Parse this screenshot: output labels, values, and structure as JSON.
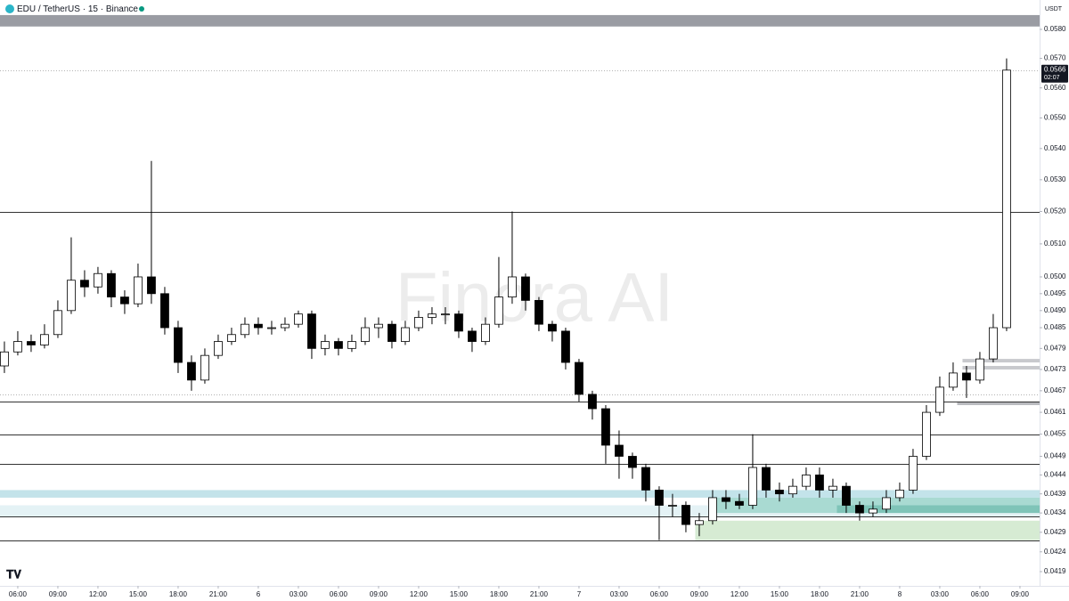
{
  "chart_data": {
    "type": "candlestick",
    "title": "EDU / TetherUS · 15 · Binance",
    "watermark": "Finora AI",
    "y_unit": "USDT",
    "log_y": true,
    "up_color": "#ffffff",
    "down_color": "#000000",
    "outline_color": "#000000",
    "ylim": [
      0.0419,
      0.058
    ],
    "yticks": [
      {
        "value": 0.058,
        "label": "0.0580"
      },
      {
        "value": 0.057,
        "label": "0.0570"
      },
      {
        "value": 0.056,
        "label": "0.0560"
      },
      {
        "value": 0.055,
        "label": "0.0550"
      },
      {
        "value": 0.054,
        "label": "0.0540"
      },
      {
        "value": 0.053,
        "label": "0.0530"
      },
      {
        "value": 0.052,
        "label": "0.0520"
      },
      {
        "value": 0.051,
        "label": "0.0510"
      },
      {
        "value": 0.05,
        "label": "0.0500"
      },
      0.0495,
      {
        "value": 0.049,
        "label": "0.0490"
      },
      0.0485,
      0.0479,
      0.0473,
      0.0467,
      0.0461,
      0.0455,
      0.0449,
      0.0444,
      0.0439,
      0.0434,
      0.0429,
      0.0424,
      0.0419
    ],
    "xlim": [
      -1.33,
      76.47
    ],
    "xticks": [
      {
        "value": 0,
        "label": "06:00"
      },
      {
        "value": 3,
        "label": "09:00"
      },
      {
        "value": 6,
        "label": "12:00"
      },
      {
        "value": 9,
        "label": "15:00"
      },
      {
        "value": 12,
        "label": "18:00"
      },
      {
        "value": 15,
        "label": "21:00"
      },
      {
        "value": 18,
        "label": "6"
      },
      {
        "value": 21,
        "label": "03:00"
      },
      {
        "value": 24,
        "label": "06:00"
      },
      {
        "value": 27,
        "label": "09:00"
      },
      {
        "value": 30,
        "label": "12:00"
      },
      {
        "value": 33,
        "label": "15:00"
      },
      {
        "value": 36,
        "label": "18:00"
      },
      {
        "value": 39,
        "label": "21:00"
      },
      {
        "value": 42,
        "label": "7"
      },
      {
        "value": 45,
        "label": "03:00"
      },
      {
        "value": 48,
        "label": "06:00"
      },
      {
        "value": 51,
        "label": "09:00"
      },
      {
        "value": 54,
        "label": "12:00"
      },
      {
        "value": 57,
        "label": "15:00"
      },
      {
        "value": 60,
        "label": "18:00"
      },
      {
        "value": 63,
        "label": "21:00"
      },
      {
        "value": 66,
        "label": "8"
      },
      {
        "value": 69,
        "label": "03:00"
      },
      {
        "value": 72,
        "label": "06:00"
      },
      {
        "value": 75,
        "label": "09:00"
      }
    ],
    "x": [
      -1,
      0,
      1,
      2,
      3,
      4,
      5,
      6,
      7,
      8,
      9,
      10,
      11,
      12,
      13,
      14,
      15,
      16,
      17,
      18,
      19,
      20,
      21,
      22,
      23,
      24,
      25,
      26,
      27,
      28,
      29,
      30,
      31,
      32,
      33,
      34,
      35,
      36,
      37,
      38,
      39,
      40,
      41,
      42,
      43,
      44,
      45,
      46,
      47,
      48,
      49,
      50,
      51,
      52,
      53,
      54,
      55,
      56,
      57,
      58,
      59,
      60,
      61,
      62,
      63,
      64,
      65,
      66,
      67,
      68,
      69,
      70,
      71,
      72,
      73,
      74
    ],
    "open": [
      0.0474,
      0.0478,
      0.0481,
      0.048,
      0.0483,
      0.049,
      0.0499,
      0.0497,
      0.0501,
      0.0494,
      0.0492,
      0.05,
      0.0495,
      0.0485,
      0.0475,
      0.047,
      0.0477,
      0.0481,
      0.0483,
      0.0486,
      0.0485,
      0.0485,
      0.0486,
      0.0489,
      0.0479,
      0.0481,
      0.0479,
      0.0481,
      0.0485,
      0.0486,
      0.0481,
      0.0485,
      0.0488,
      0.0489,
      0.0489,
      0.0484,
      0.0481,
      0.0486,
      0.0494,
      0.05,
      0.0493,
      0.0486,
      0.0484,
      0.0475,
      0.0466,
      0.0462,
      0.0452,
      0.0449,
      0.0446,
      0.044,
      0.0436,
      0.0436,
      0.0431,
      0.0432,
      0.0438,
      0.0437,
      0.0436,
      0.0446,
      0.044,
      0.0439,
      0.0441,
      0.0444,
      0.044,
      0.0441,
      0.0436,
      0.0434,
      0.0435,
      0.0438,
      0.044,
      0.0449,
      0.0461,
      0.0468,
      0.0472,
      0.047,
      0.0476,
      0.0485
    ],
    "high": [
      0.0481,
      0.0484,
      0.0483,
      0.0486,
      0.0493,
      0.0512,
      0.0502,
      0.0503,
      0.0502,
      0.0496,
      0.0504,
      0.0536,
      0.0497,
      0.0487,
      0.0477,
      0.0479,
      0.0483,
      0.0485,
      0.0488,
      0.0488,
      0.0487,
      0.0488,
      0.049,
      0.049,
      0.0483,
      0.0482,
      0.0483,
      0.0488,
      0.0488,
      0.0487,
      0.0487,
      0.049,
      0.0491,
      0.0491,
      0.049,
      0.0485,
      0.0488,
      0.0506,
      0.052,
      0.0501,
      0.0494,
      0.0487,
      0.0485,
      0.0476,
      0.0467,
      0.0463,
      0.0456,
      0.045,
      0.0447,
      0.0441,
      0.0439,
      0.0437,
      0.0434,
      0.044,
      0.044,
      0.0439,
      0.0455,
      0.0447,
      0.0442,
      0.0443,
      0.0446,
      0.0446,
      0.0443,
      0.0442,
      0.0437,
      0.0437,
      0.044,
      0.0442,
      0.0451,
      0.0463,
      0.0471,
      0.0475,
      0.0474,
      0.0478,
      0.0489,
      0.057
    ],
    "low": [
      0.0472,
      0.0477,
      0.0478,
      0.0479,
      0.0482,
      0.0489,
      0.0494,
      0.0495,
      0.0491,
      0.0489,
      0.0491,
      0.0492,
      0.0483,
      0.0472,
      0.0467,
      0.0469,
      0.0476,
      0.048,
      0.0482,
      0.0483,
      0.0483,
      0.0484,
      0.0485,
      0.0476,
      0.0477,
      0.0477,
      0.0478,
      0.048,
      0.0482,
      0.0479,
      0.048,
      0.0484,
      0.0486,
      0.0486,
      0.0482,
      0.0478,
      0.048,
      0.0485,
      0.0492,
      0.049,
      0.0484,
      0.0481,
      0.0473,
      0.0464,
      0.0459,
      0.0447,
      0.0443,
      0.0443,
      0.0437,
      0.0427,
      0.0433,
      0.0429,
      0.0428,
      0.0431,
      0.0435,
      0.0435,
      0.0435,
      0.0438,
      0.0437,
      0.0438,
      0.044,
      0.0438,
      0.0438,
      0.0434,
      0.0432,
      0.0433,
      0.0434,
      0.0437,
      0.0439,
      0.0448,
      0.046,
      0.0467,
      0.0465,
      0.0469,
      0.0475,
      0.0484
    ],
    "close": [
      0.0478,
      0.0481,
      0.048,
      0.0483,
      0.049,
      0.0499,
      0.0497,
      0.0501,
      0.0494,
      0.0492,
      0.05,
      0.0495,
      0.0485,
      0.0475,
      0.047,
      0.0477,
      0.0481,
      0.0483,
      0.0486,
      0.0485,
      0.0485,
      0.0486,
      0.0489,
      0.0479,
      0.0481,
      0.0479,
      0.0481,
      0.0485,
      0.0486,
      0.0481,
      0.0485,
      0.0488,
      0.0489,
      0.0489,
      0.0484,
      0.0481,
      0.0486,
      0.0494,
      0.05,
      0.0493,
      0.0486,
      0.0484,
      0.0475,
      0.0466,
      0.0462,
      0.0452,
      0.0449,
      0.0446,
      0.044,
      0.0436,
      0.0436,
      0.0431,
      0.0432,
      0.0438,
      0.0437,
      0.0436,
      0.0446,
      0.044,
      0.0439,
      0.0441,
      0.0444,
      0.044,
      0.0441,
      0.0436,
      0.0434,
      0.0435,
      0.0438,
      0.044,
      0.0449,
      0.0461,
      0.0468,
      0.0472,
      0.047,
      0.0476,
      0.0485,
      0.0566
    ],
    "levels": [
      0.052,
      0.0464,
      0.0455,
      0.0447,
      0.0433,
      0.0427
    ],
    "level_color": "#333333",
    "dotted_levels": [
      0.0566,
      0.0466
    ],
    "dotted_color": "#9a9a9a",
    "zones": [
      {
        "from": 0.0581,
        "to": 0.0585,
        "color": "#9a9ca3"
      },
      {
        "from": 0.0438,
        "to": 0.044,
        "color": "#c3e3ea"
      },
      {
        "from": 0.0433,
        "to": 0.0436,
        "color": "#e4f2f5"
      },
      {
        "from": 0.0434,
        "to": 0.0438,
        "x_start": 51.7,
        "color": "#a9dad2"
      },
      {
        "from": 0.0434,
        "to": 0.0436,
        "x_start": 61.3,
        "color": "#7fc4b8"
      },
      {
        "from": 0.0427,
        "to": 0.0432,
        "x_start": 50.7,
        "color": "#d6ebd3"
      },
      {
        "from": 0.0475,
        "to": 0.0476,
        "x_start": 70.7,
        "color": "#c8c9cd"
      },
      {
        "from": 0.0473,
        "to": 0.0474,
        "x_start": 70.7,
        "color": "#c8c9cd"
      },
      {
        "from": 0.0463,
        "to": 0.0464,
        "x_start": 70.3,
        "color": "#b9babe"
      }
    ],
    "last_price": {
      "value": 0.0566,
      "label": "0.0566"
    },
    "countdown": "02:07"
  }
}
